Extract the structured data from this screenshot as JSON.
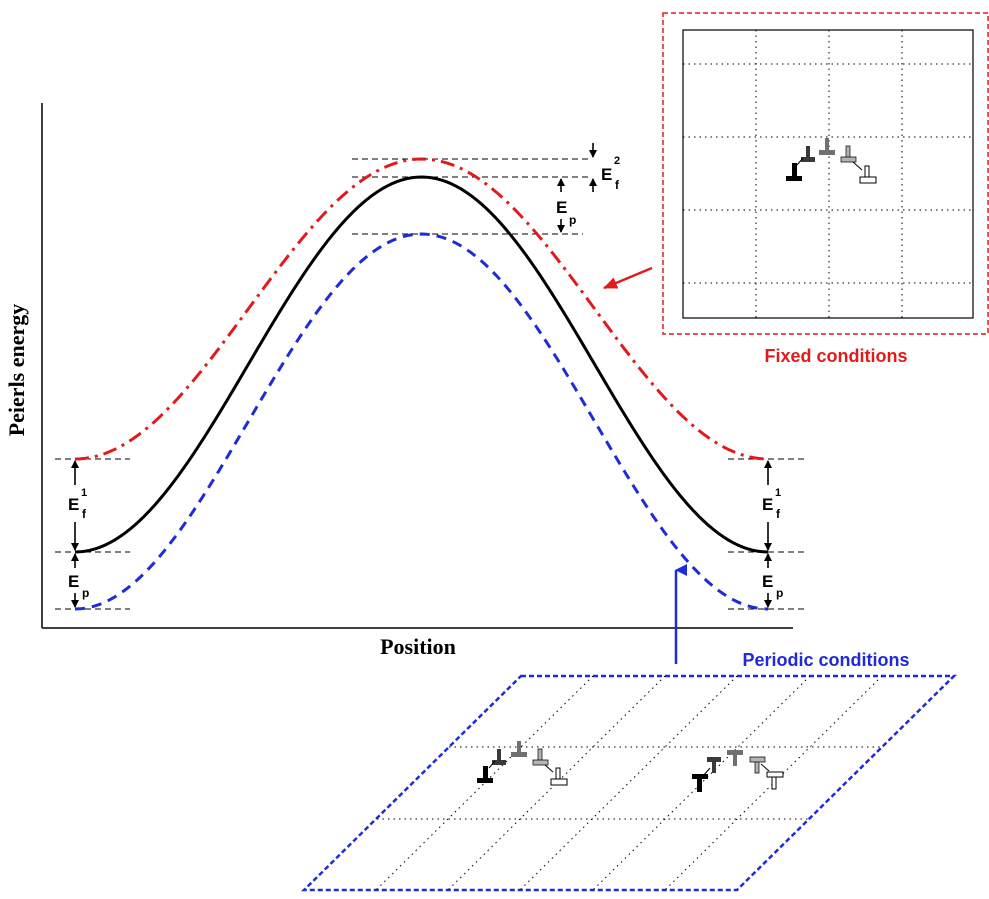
{
  "axes": {
    "xlabel": "Position",
    "ylabel": "Peierls energy"
  },
  "energy_labels": {
    "e_f_main": "E",
    "sub_f": "f",
    "sup_1": "1",
    "sup_2": "2",
    "e_p_main": "E",
    "sub_p": "p"
  },
  "panels": {
    "fixed_caption": "Fixed conditions",
    "periodic_caption": "Periodic conditions"
  },
  "colors": {
    "fixed": "#e31a1c",
    "periodic": "#1f2ad8",
    "reference": "#000000"
  },
  "curves": [
    {
      "id": "fixed",
      "line_style": "dash-dot",
      "color": "#e31a1c"
    },
    {
      "id": "reference",
      "line_style": "solid",
      "color": "#000000"
    },
    {
      "id": "periodic",
      "line_style": "dashed",
      "color": "#1f2ad8"
    }
  ]
}
